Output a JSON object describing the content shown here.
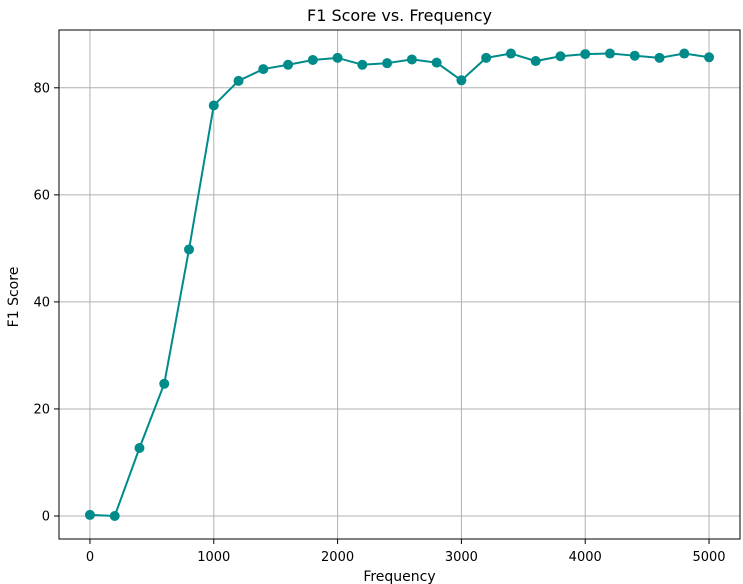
{
  "chart_data": {
    "type": "line",
    "title": "F1 Score vs. Frequency",
    "xlabel": "Frequency",
    "ylabel": "F1 Score",
    "xlim": [
      -250,
      5250
    ],
    "ylim": [
      -4.3,
      90.8
    ],
    "x_ticks": [
      0,
      1000,
      2000,
      3000,
      4000,
      5000
    ],
    "y_ticks": [
      0,
      20,
      40,
      60,
      80
    ],
    "grid": true,
    "series": [
      {
        "color": "#008b8b",
        "marker": "circle",
        "x": [
          0,
          200,
          400,
          600,
          800,
          1000,
          1200,
          1400,
          1600,
          1800,
          2000,
          2200,
          2400,
          2600,
          2800,
          3000,
          3200,
          3400,
          3600,
          3800,
          4000,
          4200,
          4400,
          4600,
          4800,
          5000
        ],
        "y": [
          0.2,
          0.0,
          12.7,
          24.7,
          49.8,
          76.7,
          81.3,
          83.5,
          84.3,
          85.2,
          85.6,
          84.3,
          84.6,
          85.3,
          84.7,
          81.4,
          85.6,
          86.4,
          85.0,
          85.9,
          86.3,
          86.4,
          86.0,
          85.6,
          86.4,
          85.7
        ]
      }
    ]
  }
}
